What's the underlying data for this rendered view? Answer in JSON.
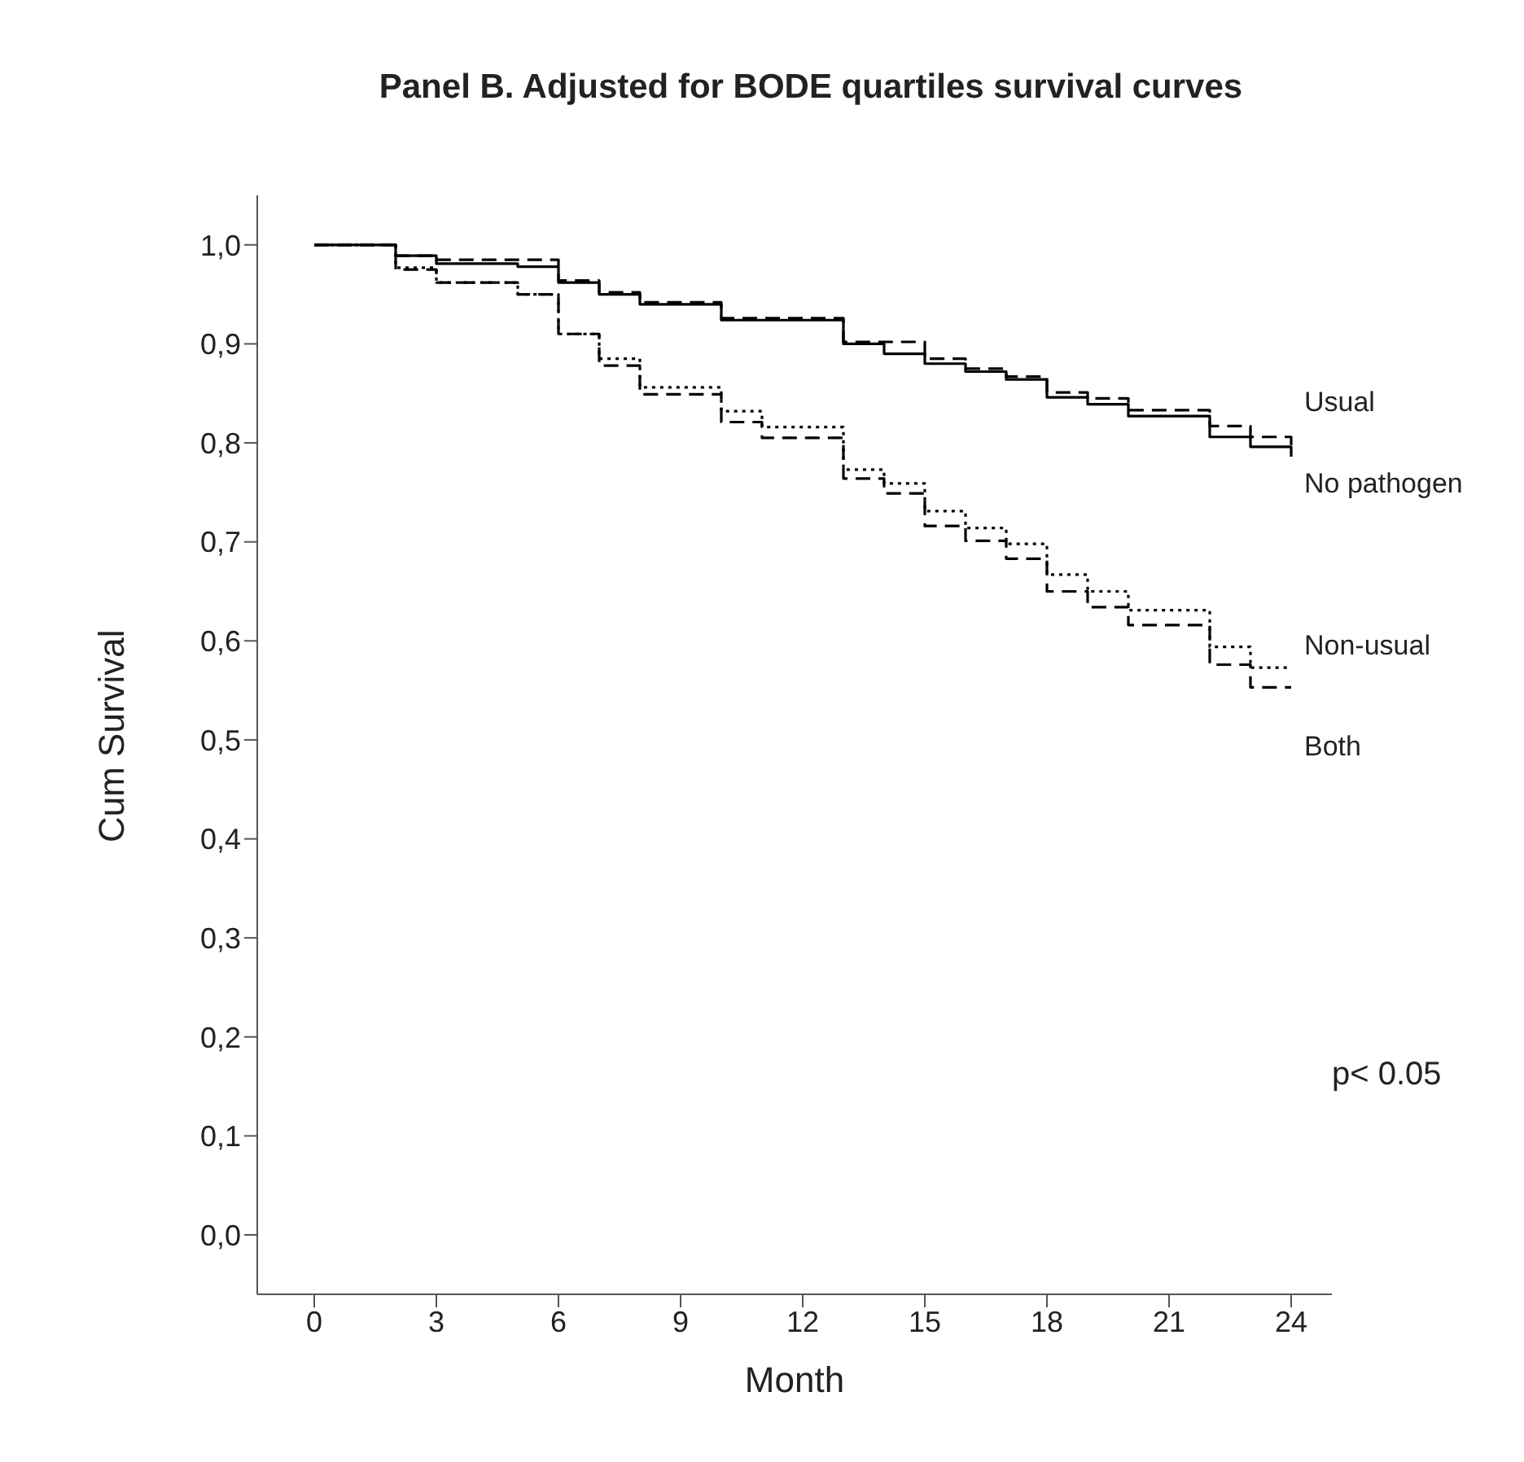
{
  "chart_data": {
    "type": "step",
    "title": "Panel B. Adjusted for BODE quartiles survival curves",
    "xlabel": "Month",
    "ylabel": "Cum Survival",
    "xlim": [
      -1.4,
      25
    ],
    "xticks": [
      0,
      3,
      6,
      9,
      12,
      15,
      18,
      21,
      24
    ],
    "ylim": [
      -0.06,
      1.05
    ],
    "yticks": [
      {
        "value": 0,
        "label": "0,0"
      },
      {
        "value": 0.1,
        "label": "0,1"
      },
      {
        "value": 0.2,
        "label": "0,2"
      },
      {
        "value": 0.3,
        "label": "0,3"
      },
      {
        "value": 0.4,
        "label": "0,4"
      },
      {
        "value": 0.5,
        "label": "0,5"
      },
      {
        "value": 0.6,
        "label": "0,6"
      },
      {
        "value": 0.7,
        "label": "0,7"
      },
      {
        "value": 0.8,
        "label": "0,8"
      },
      {
        "value": 0.9,
        "label": "0,9"
      },
      {
        "value": 1,
        "label": "1,0"
      }
    ],
    "legend": false,
    "marker": "none",
    "annotations": [
      "p< 0.05"
    ],
    "series": [
      {
        "name": "Usual",
        "color": "#000000",
        "line_style": "dashed",
        "x": [
          0,
          2,
          3,
          6,
          7,
          8,
          10,
          13,
          15,
          16,
          17,
          18,
          19,
          20,
          22,
          23,
          24
        ],
        "values": [
          1,
          0.989,
          0.985,
          0.964,
          0.952,
          0.942,
          0.926,
          0.902,
          0.885,
          0.875,
          0.867,
          0.851,
          0.845,
          0.833,
          0.817,
          0.806,
          0.796
        ]
      },
      {
        "name": "No pathogen",
        "color": "#000000",
        "line_style": "solid",
        "x": [
          0,
          2,
          3,
          5,
          6,
          7,
          8,
          10,
          13,
          14,
          15,
          16,
          17,
          18,
          19,
          20,
          22,
          23,
          24
        ],
        "values": [
          1,
          0.989,
          0.981,
          0.978,
          0.962,
          0.95,
          0.94,
          0.924,
          0.9,
          0.89,
          0.88,
          0.872,
          0.864,
          0.846,
          0.839,
          0.827,
          0.806,
          0.796,
          0.786
        ]
      },
      {
        "name": "Non-usual",
        "color": "#000000",
        "line_style": "dotted",
        "x": [
          0,
          2,
          3,
          5,
          6,
          7,
          8,
          10,
          11,
          13,
          14,
          15,
          16,
          17,
          18,
          19,
          20,
          22,
          23,
          24
        ],
        "values": [
          1,
          0.977,
          0.962,
          0.95,
          0.91,
          0.885,
          0.856,
          0.832,
          0.816,
          0.773,
          0.759,
          0.731,
          0.714,
          0.698,
          0.667,
          0.65,
          0.631,
          0.594,
          0.573,
          0.573
        ]
      },
      {
        "name": "Both",
        "color": "#000000",
        "line_style": "dashed",
        "x": [
          0,
          2,
          3,
          5,
          6,
          7,
          8,
          10,
          11,
          13,
          14,
          15,
          16,
          17,
          18,
          19,
          20,
          22,
          23,
          24
        ],
        "values": [
          1,
          0.975,
          0.962,
          0.95,
          0.91,
          0.878,
          0.849,
          0.821,
          0.805,
          0.764,
          0.749,
          0.716,
          0.701,
          0.683,
          0.65,
          0.634,
          0.616,
          0.576,
          0.553,
          0.553
        ]
      }
    ]
  }
}
